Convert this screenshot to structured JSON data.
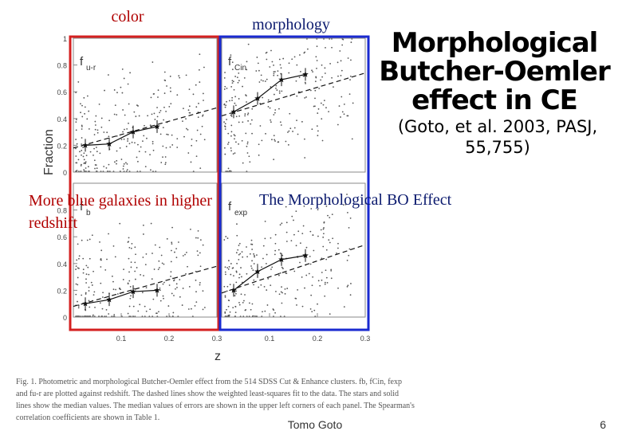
{
  "labels": {
    "color": "color",
    "morphology": "morphology"
  },
  "title": "Morphological Butcher-Oemler effect in CE",
  "citation": "(Goto, et al. 2003, PASJ, 55,755)",
  "notes": {
    "red": "More blue galaxies in higher redshift",
    "blue": "The Morphological BO Effect"
  },
  "caption": "Fig. 1. Photometric and morphological Butcher-Oemler effect from the 514 SDSS Cut & Enhance clusters. fb, fCin, fexp and fu-r are plotted against redshift. The dashed lines show the weighted least-squares fit to the data. The stars and solid lines show the median values. The median values of errors are shown in the upper left corners of each panel. The Spearman's correlation coefficients are shown in Table 1.",
  "footer": {
    "name": "Tomo Goto",
    "page": "6"
  },
  "colors": {
    "red_box": "#d42020",
    "blue_box": "#1a2ad0"
  },
  "chart_data": [
    {
      "type": "scatter",
      "panel_label": "f_{u-r}",
      "xlim": [
        0.0,
        0.3
      ],
      "ylim": [
        0,
        1
      ],
      "yticks": [
        "1",
        "0.8",
        "0.6",
        "0.4",
        "0.2",
        "0"
      ],
      "median": {
        "x": [
          0.025,
          0.075,
          0.125,
          0.175
        ],
        "y": [
          0.2,
          0.21,
          0.3,
          0.34
        ]
      },
      "fit": {
        "x": [
          0.0,
          0.3
        ],
        "y": [
          0.18,
          0.48
        ]
      }
    },
    {
      "type": "scatter",
      "panel_label": "f_{Cin}",
      "xlim": [
        0.0,
        0.3
      ],
      "ylim": [
        0,
        1
      ],
      "median": {
        "x": [
          0.025,
          0.075,
          0.125,
          0.175
        ],
        "y": [
          0.45,
          0.55,
          0.69,
          0.73
        ]
      },
      "fit": {
        "x": [
          0.0,
          0.3
        ],
        "y": [
          0.42,
          0.74
        ]
      }
    },
    {
      "type": "scatter",
      "panel_label": "f_b",
      "xlim": [
        0.0,
        0.3
      ],
      "ylim": [
        0,
        1
      ],
      "yticks": [
        "0.8",
        "0.6",
        "0.4",
        "0.2",
        "0"
      ],
      "xticks": [
        "0.1",
        "0.2",
        "0.3"
      ],
      "median": {
        "x": [
          0.025,
          0.075,
          0.125,
          0.175
        ],
        "y": [
          0.1,
          0.13,
          0.19,
          0.2
        ]
      },
      "fit": {
        "x": [
          0.0,
          0.3
        ],
        "y": [
          0.08,
          0.38
        ]
      }
    },
    {
      "type": "scatter",
      "panel_label": "f_{exp}",
      "xlim": [
        0.0,
        0.3
      ],
      "ylim": [
        0,
        1
      ],
      "xticks": [
        "0.1",
        "0.2",
        "0.3"
      ],
      "median": {
        "x": [
          0.025,
          0.075,
          0.125,
          0.175
        ],
        "y": [
          0.2,
          0.34,
          0.43,
          0.46
        ]
      },
      "fit": {
        "x": [
          0.0,
          0.3
        ],
        "y": [
          0.18,
          0.54
        ]
      }
    }
  ],
  "axes": {
    "xlabel": "z",
    "ylabel": "Fraction"
  }
}
